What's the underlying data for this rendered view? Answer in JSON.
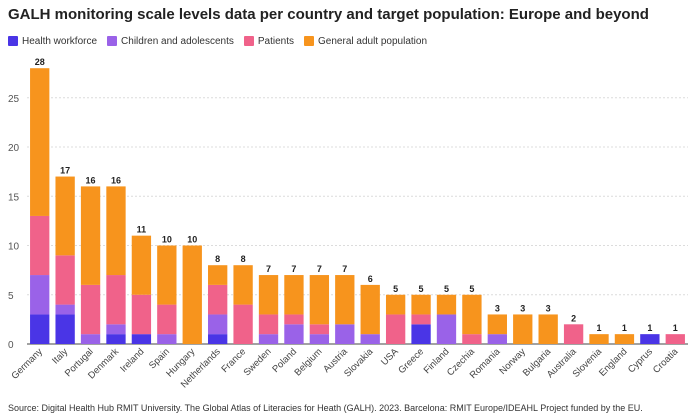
{
  "chart_data": {
    "type": "bar",
    "stacked": true,
    "title": "GALH monitoring scale levels data per country and target population: Europe and beyond",
    "xlabel": "",
    "ylabel": "",
    "ylim": [
      0,
      28
    ],
    "yticks": [
      0,
      5,
      10,
      15,
      20,
      25
    ],
    "grid": true,
    "legend_position": "top-left",
    "categories": [
      "Germany",
      "Italy",
      "Portugal",
      "Denmark",
      "Ireland",
      "Spain",
      "Hungary",
      "Netherlands",
      "France",
      "Sweden",
      "Poland",
      "Belgium",
      "Austria",
      "Slovakia",
      "USA",
      "Greece",
      "Finland",
      "Czechia",
      "Romania",
      "Norway",
      "Bulgaria",
      "Australia",
      "Slovenia",
      "England",
      "Cyprus",
      "Croatia"
    ],
    "series": [
      {
        "name": "Health workforce",
        "color": "#4a35e6",
        "values": [
          3,
          3,
          0,
          1,
          1,
          0,
          0,
          1,
          0,
          0,
          0,
          0,
          0,
          0,
          0,
          2,
          0,
          0,
          0,
          0,
          0,
          0,
          0,
          0,
          1,
          0
        ]
      },
      {
        "name": "Children and adolescents",
        "color": "#9a62e8",
        "values": [
          4,
          1,
          1,
          1,
          0,
          1,
          0,
          2,
          0,
          1,
          2,
          1,
          2,
          1,
          0,
          0,
          3,
          0,
          1,
          0,
          0,
          0,
          0,
          0,
          0,
          0
        ]
      },
      {
        "name": "Patients",
        "color": "#f0628a",
        "values": [
          6,
          5,
          5,
          5,
          4,
          3,
          0,
          3,
          4,
          2,
          1,
          1,
          0,
          0,
          3,
          1,
          0,
          1,
          0,
          0,
          0,
          2,
          0,
          0,
          0,
          1
        ]
      },
      {
        "name": "General adult population",
        "color": "#f7941d",
        "values": [
          15,
          8,
          10,
          9,
          6,
          6,
          10,
          2,
          4,
          4,
          4,
          5,
          5,
          5,
          2,
          2,
          2,
          4,
          2,
          3,
          3,
          0,
          1,
          1,
          0,
          0
        ]
      }
    ],
    "totals": [
      28,
      17,
      16,
      16,
      11,
      10,
      10,
      8,
      8,
      7,
      7,
      7,
      7,
      6,
      5,
      5,
      5,
      5,
      3,
      3,
      3,
      2,
      1,
      1,
      1,
      1
    ]
  },
  "source": "Source: Digital Health Hub RMIT University. The Global Atlas of Literacies for Heath (GALH). 2023. Barcelona: RMIT Europe/IDEAHL Project funded by the EU."
}
